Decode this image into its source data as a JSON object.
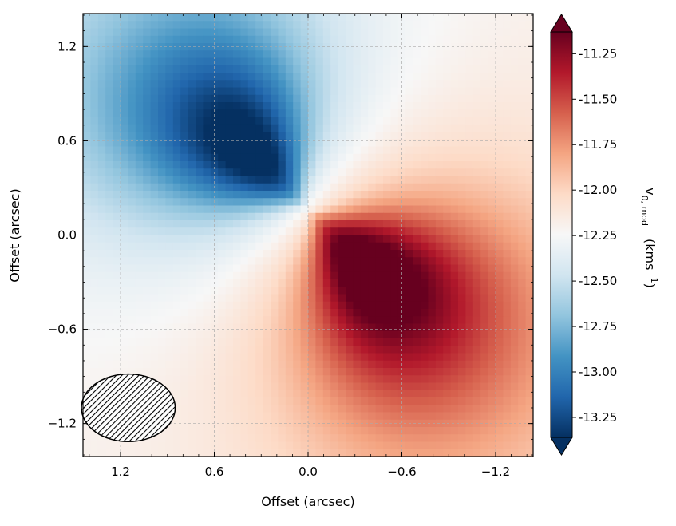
{
  "chart_data": {
    "type": "heatmap",
    "title": "",
    "xlabel": "Offset (arcsec)",
    "ylabel": "Offset (arcsec)",
    "xlim": [
      1.44,
      -1.44
    ],
    "ylim": [
      -1.41,
      1.41
    ],
    "x_ticks": [
      1.2,
      0.6,
      0.0,
      -0.6,
      -1.2
    ],
    "x_tick_labels": [
      "1.2",
      "0.6",
      "0.0",
      "−0.6",
      "−1.2"
    ],
    "y_ticks": [
      1.2,
      0.6,
      0.0,
      -0.6,
      -1.2
    ],
    "y_tick_labels": [
      "1.2",
      "0.6",
      "0.0",
      "−0.6",
      "−1.2"
    ],
    "grid": true,
    "colormap": "RdBu_r",
    "colorbar": {
      "label_main": "v",
      "label_sub": "0, mod",
      "label_unit_open": "(kms",
      "label_unit_exp": "−1",
      "label_unit_close": ")",
      "vmin": -13.36,
      "vmax": -11.13,
      "extend": "both",
      "ticks": [
        -11.25,
        -11.5,
        -11.75,
        -12.0,
        -12.25,
        -12.5,
        -12.75,
        -13.0,
        -13.25
      ],
      "tick_labels": [
        "-11.25",
        "-11.50",
        "-11.75",
        "-12.00",
        "-12.25",
        "-12.50",
        "-12.75",
        "-13.00",
        "-13.25"
      ]
    },
    "model": {
      "center_offset": [
        0.0,
        0.16
      ],
      "systemic_velocity": -12.2,
      "redshifted_lobe_pa_deg": 225,
      "peak_amplitude": 1.3,
      "grid_cells": 60
    },
    "beam": {
      "center": [
        1.15,
        -1.1
      ],
      "fwhm": [
        0.6,
        0.43
      ],
      "hatched": true
    }
  }
}
